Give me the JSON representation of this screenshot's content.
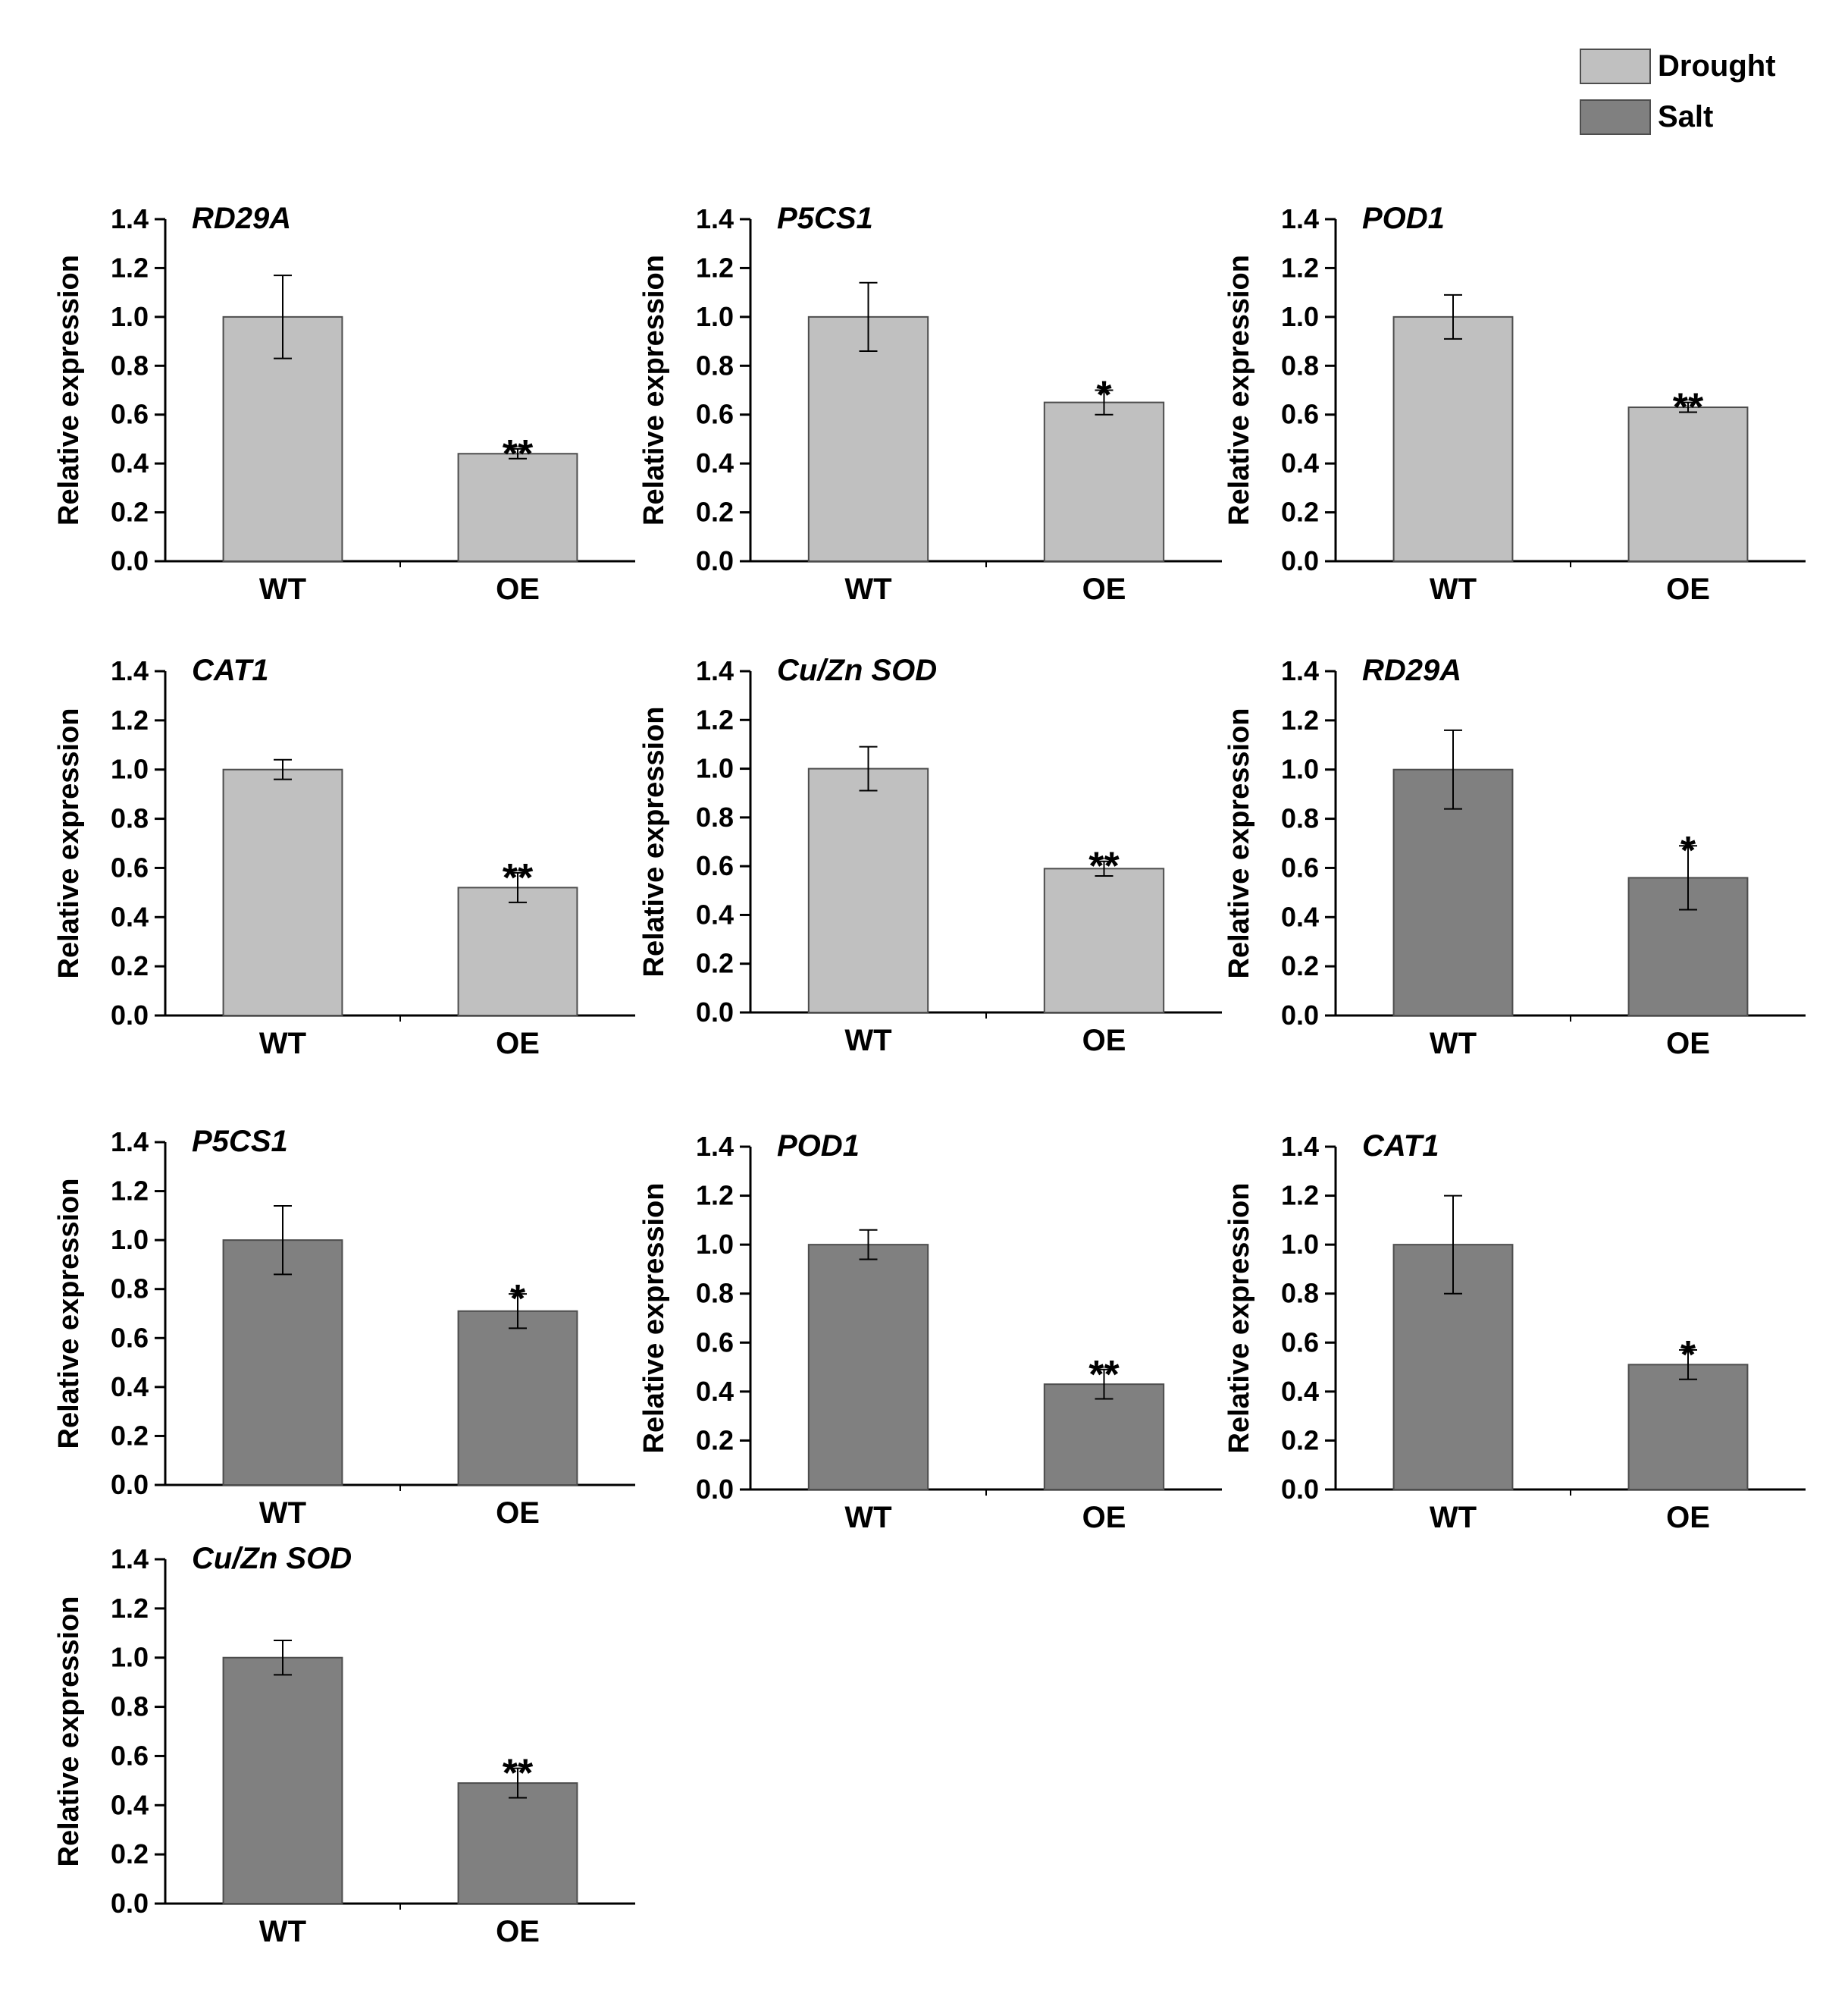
{
  "legend": [
    {
      "label": "Drought",
      "color": "#c0c0c0"
    },
    {
      "label": "Salt",
      "color": "#808080"
    }
  ],
  "colors": {
    "drought": "#c0c0c0",
    "salt": "#808080",
    "edge": "#4d4d4d",
    "axis": "#000000"
  },
  "chart_data": [
    {
      "type": "bar",
      "title": "RD29A",
      "condition": "Drought",
      "categories": [
        "WT",
        "OE"
      ],
      "values": [
        1.0,
        0.44
      ],
      "errors": [
        0.17,
        0.02
      ],
      "significance": [
        "",
        "**"
      ],
      "xlabel": "",
      "ylabel": "Relative expression",
      "ylim": [
        0,
        1.4
      ],
      "yticks": [
        "0.0",
        "0.2",
        "0.4",
        "0.6",
        "0.8",
        "1.0",
        "1.2",
        "1.4"
      ]
    },
    {
      "type": "bar",
      "title": "P5CS1",
      "condition": "Drought",
      "categories": [
        "WT",
        "OE"
      ],
      "values": [
        1.0,
        0.65
      ],
      "errors": [
        0.14,
        0.05
      ],
      "significance": [
        "",
        "*"
      ],
      "xlabel": "",
      "ylabel": "Relative expression",
      "ylim": [
        0,
        1.4
      ],
      "yticks": [
        "0.0",
        "0.2",
        "0.4",
        "0.6",
        "0.8",
        "1.0",
        "1.2",
        "1.4"
      ]
    },
    {
      "type": "bar",
      "title": "POD1",
      "condition": "Drought",
      "categories": [
        "WT",
        "OE"
      ],
      "values": [
        1.0,
        0.63
      ],
      "errors": [
        0.09,
        0.02
      ],
      "significance": [
        "",
        "**"
      ],
      "xlabel": "",
      "ylabel": "Relative expression",
      "ylim": [
        0,
        1.4
      ],
      "yticks": [
        "0.0",
        "0.2",
        "0.4",
        "0.6",
        "0.8",
        "1.0",
        "1.2",
        "1.4"
      ]
    },
    {
      "type": "bar",
      "title": "CAT1",
      "condition": "Drought",
      "categories": [
        "WT",
        "OE"
      ],
      "values": [
        1.0,
        0.52
      ],
      "errors": [
        0.04,
        0.06
      ],
      "significance": [
        "",
        "**"
      ],
      "xlabel": "",
      "ylabel": "Relative expression",
      "ylim": [
        0,
        1.4
      ],
      "yticks": [
        "0.0",
        "0.2",
        "0.4",
        "0.6",
        "0.8",
        "1.0",
        "1.2",
        "1.4"
      ]
    },
    {
      "type": "bar",
      "title": "Cu/Zn SOD",
      "condition": "Drought",
      "categories": [
        "WT",
        "OE"
      ],
      "values": [
        1.0,
        0.59
      ],
      "errors": [
        0.09,
        0.03
      ],
      "significance": [
        "",
        "**"
      ],
      "xlabel": "",
      "ylabel": "Relative expression",
      "ylim": [
        0,
        1.4
      ],
      "yticks": [
        "0.0",
        "0.2",
        "0.4",
        "0.6",
        "0.8",
        "1.0",
        "1.2",
        "1.4"
      ]
    },
    {
      "type": "bar",
      "title": "RD29A",
      "condition": "Salt",
      "categories": [
        "WT",
        "OE"
      ],
      "values": [
        1.0,
        0.56
      ],
      "errors": [
        0.16,
        0.13
      ],
      "significance": [
        "",
        "*"
      ],
      "xlabel": "",
      "ylabel": "Relative expression",
      "ylim": [
        0,
        1.4
      ],
      "yticks": [
        "0.0",
        "0.2",
        "0.4",
        "0.6",
        "0.8",
        "1.0",
        "1.2",
        "1.4"
      ]
    },
    {
      "type": "bar",
      "title": "P5CS1",
      "condition": "Salt",
      "categories": [
        "WT",
        "OE"
      ],
      "values": [
        1.0,
        0.71
      ],
      "errors": [
        0.14,
        0.07
      ],
      "significance": [
        "",
        "*"
      ],
      "xlabel": "",
      "ylabel": "Relative expression",
      "ylim": [
        0,
        1.4
      ],
      "yticks": [
        "0.0",
        "0.2",
        "0.4",
        "0.6",
        "0.8",
        "1.0",
        "1.2",
        "1.4"
      ]
    },
    {
      "type": "bar",
      "title": "POD1",
      "condition": "Salt",
      "categories": [
        "WT",
        "OE"
      ],
      "values": [
        1.0,
        0.43
      ],
      "errors": [
        0.06,
        0.06
      ],
      "significance": [
        "",
        "**"
      ],
      "xlabel": "",
      "ylabel": "Relative expression",
      "ylim": [
        0,
        1.4
      ],
      "yticks": [
        "0.0",
        "0.2",
        "0.4",
        "0.6",
        "0.8",
        "1.0",
        "1.2",
        "1.4"
      ]
    },
    {
      "type": "bar",
      "title": "CAT1",
      "condition": "Salt",
      "categories": [
        "WT",
        "OE"
      ],
      "values": [
        1.0,
        0.51
      ],
      "errors": [
        0.2,
        0.06
      ],
      "significance": [
        "",
        "*"
      ],
      "xlabel": "",
      "ylabel": "Relative expression",
      "ylim": [
        0,
        1.4
      ],
      "yticks": [
        "0.0",
        "0.2",
        "0.4",
        "0.6",
        "0.8",
        "1.0",
        "1.2",
        "1.4"
      ]
    },
    {
      "type": "bar",
      "title": "Cu/Zn SOD",
      "condition": "Salt",
      "categories": [
        "WT",
        "OE"
      ],
      "values": [
        1.0,
        0.49
      ],
      "errors": [
        0.07,
        0.06
      ],
      "significance": [
        "",
        "**"
      ],
      "xlabel": "",
      "ylabel": "Relative expression",
      "ylim": [
        0,
        1.4
      ],
      "yticks": [
        "0.0",
        "0.2",
        "0.4",
        "0.6",
        "0.8",
        "1.0",
        "1.2",
        "1.4"
      ]
    }
  ]
}
